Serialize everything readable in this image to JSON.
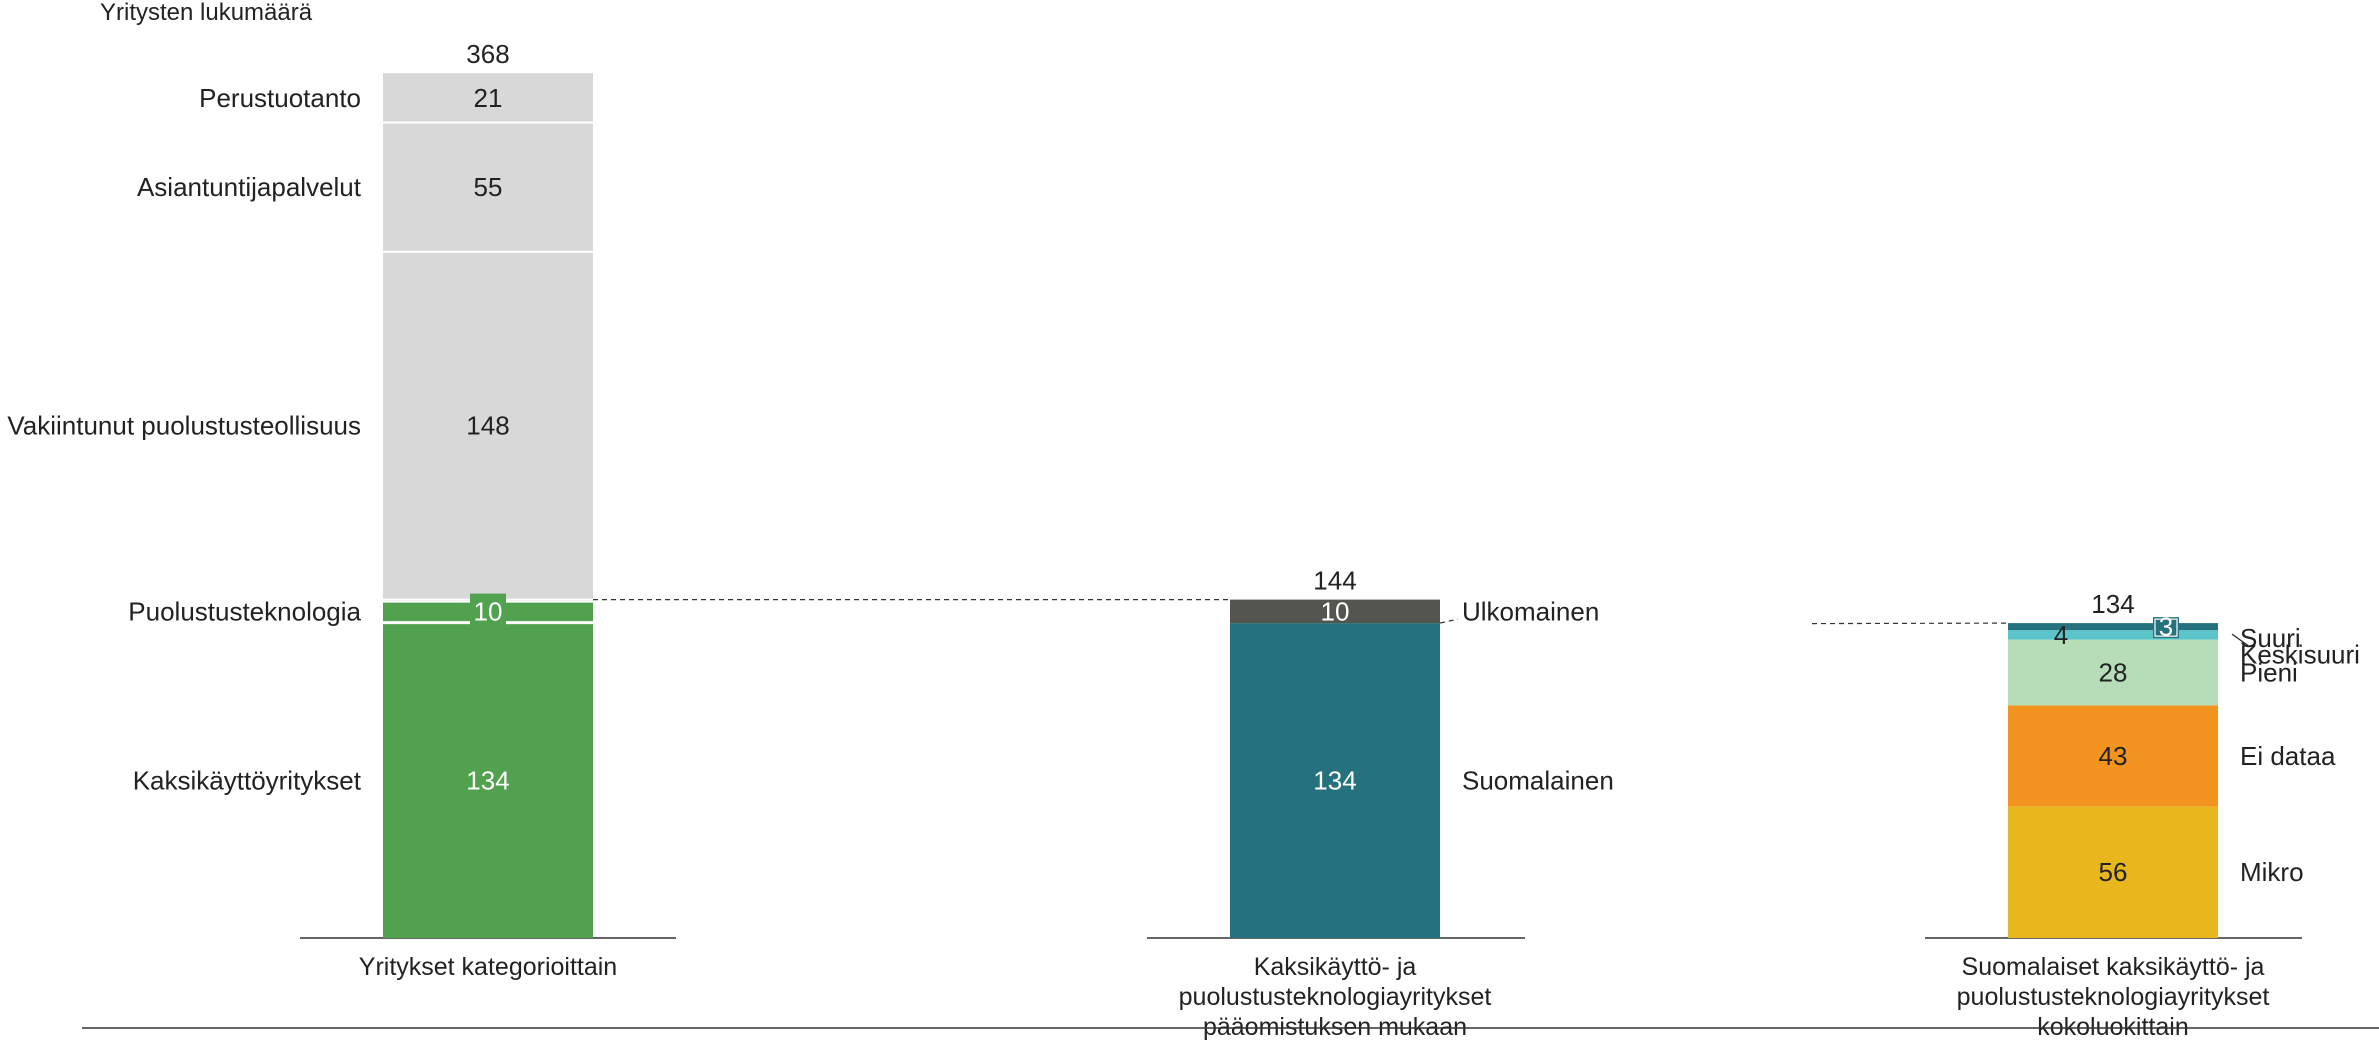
{
  "chart_data": {
    "type": "bar",
    "stacked": true,
    "ylabel": "Yritysten lukumäärä",
    "grid": false,
    "legend": "none",
    "bars": [
      {
        "category": "Yritykset kategorioittain",
        "total": 368,
        "segments": [
          {
            "name": "Kaksikäyttöyritykset",
            "value": 134,
            "color": "#52A14F",
            "label_color": "#ffffff"
          },
          {
            "name": "Puolustusteknologia",
            "value": 10,
            "color": "#52A14F",
            "label_color": "#ffffff"
          },
          {
            "name": "Vakiintunut puolustusteollisuus",
            "value": 148,
            "color": "#D8D8D8",
            "label_color": "#222222"
          },
          {
            "name": "Asiantuntijapalvelut",
            "value": 55,
            "color": "#D8D8D8",
            "label_color": "#222222"
          },
          {
            "name": "Perustuotanto",
            "value": 21,
            "color": "#D8D8D8",
            "label_color": "#222222"
          }
        ]
      },
      {
        "category": "Kaksikäyttö- ja puolustusteknologiayritykset pääomistuksen mukaan",
        "total": 144,
        "segments": [
          {
            "name": "Suomalainen",
            "value": 134,
            "color": "#25727E",
            "label_color": "#ffffff"
          },
          {
            "name": "Ulkomainen",
            "value": 10,
            "color": "#55554F",
            "label_color": "#ffffff"
          }
        ]
      },
      {
        "category": "Suomalaiset kaksikäyttö- ja puolustusteknologiayritykset kokoluokittain",
        "total": 134,
        "segments": [
          {
            "name": "Mikro",
            "value": 56,
            "color": "#E8B71E",
            "label_color": "#222222"
          },
          {
            "name": "Ei dataa",
            "value": 43,
            "color": "#F39421",
            "label_color": "#222222"
          },
          {
            "name": "Pieni",
            "value": 28,
            "color": "#B6DDB8",
            "label_color": "#222222"
          },
          {
            "name": "Keskisuuri",
            "value": 4,
            "color": "#5BC4CB",
            "label_color": "#222222"
          },
          {
            "name": "Suuri",
            "value": 3,
            "color": "#25727E",
            "label_color": "#ffffff"
          }
        ]
      }
    ]
  }
}
